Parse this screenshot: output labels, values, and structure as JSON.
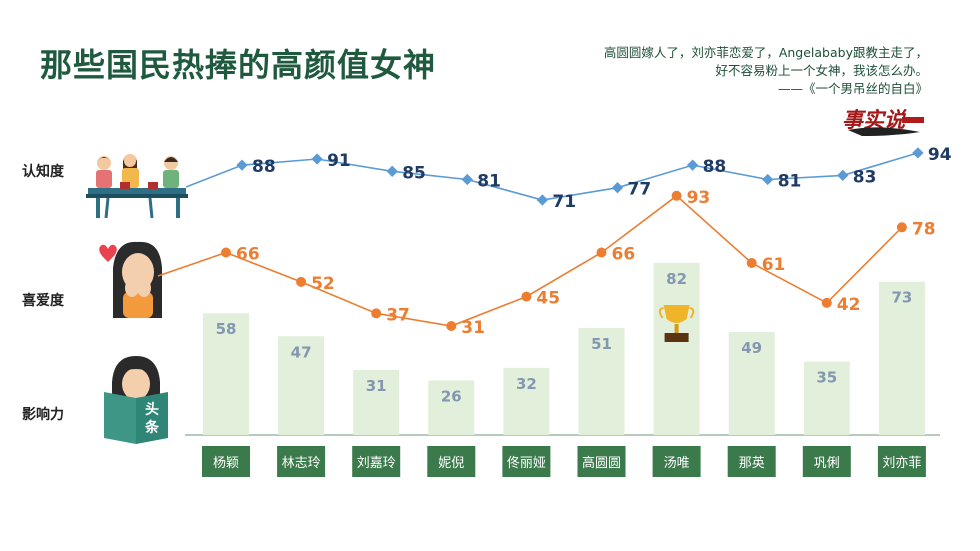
{
  "title": "那些国民热捧的高颜值女神",
  "quote": {
    "line1": "高圆圆嫁人了，刘亦菲恋爱了，Angelababy跟教主走了，",
    "line2": "好不容易粉上一个女神，我该怎么办。",
    "attribution": "——《一个男吊丝的自白》"
  },
  "logo_text": "事实说",
  "row_labels": {
    "awareness": "认知度",
    "likability": "喜爱度",
    "influence": "影响力"
  },
  "colors": {
    "awareness": "#5b9bd5",
    "awareness_label": "#1f3b63",
    "likability": "#ed7d31",
    "bar": "#e2efda",
    "bar_label": "#8497b0",
    "category_box": "#3b7a4b",
    "title": "#1f5a3f"
  },
  "chart_data": {
    "type": "bar",
    "categories": [
      "杨颖",
      "林志玲",
      "刘嘉玲",
      "妮倪",
      "佟丽娅",
      "高圆圆",
      "汤唯",
      "那英",
      "巩俐",
      "刘亦菲"
    ],
    "series": [
      {
        "name": "认知度",
        "type": "line",
        "values": [
          88,
          91,
          85,
          81,
          71,
          77,
          88,
          81,
          83,
          94
        ]
      },
      {
        "name": "喜爱度",
        "type": "line",
        "values": [
          66,
          52,
          37,
          31,
          45,
          66,
          93,
          61,
          42,
          78
        ]
      },
      {
        "name": "影响力",
        "type": "bar",
        "values": [
          58,
          47,
          31,
          26,
          32,
          51,
          82,
          49,
          35,
          73
        ]
      }
    ],
    "highlight": {
      "category": "汤唯",
      "icon": "trophy-icon"
    },
    "icons": [
      "meeting-people-icon",
      "crying-girl-icon",
      "heart-icon",
      "reading-girl-icon",
      "trophy-icon"
    ]
  }
}
